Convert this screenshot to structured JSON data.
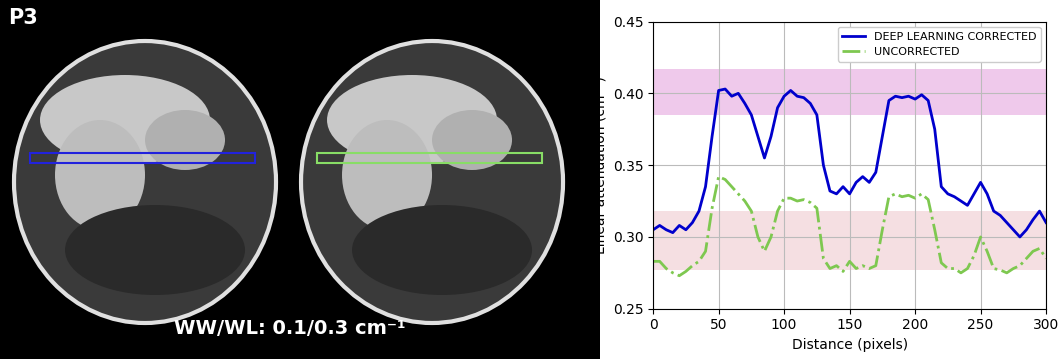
{
  "chart_data": {
    "type": "line",
    "xlabel": "Distance (pixels)",
    "ylabel": "Linear attenuation (cm⁻¹)",
    "xlim": [
      0,
      300
    ],
    "xticks": [
      0,
      50,
      100,
      150,
      200,
      250,
      300
    ],
    "ylim": [
      0.25,
      0.45
    ],
    "yticks": [
      {
        "value": 0.25,
        "label": "0.25"
      },
      {
        "value": 0.3,
        "label": "0.30"
      },
      {
        "value": 0.35,
        "label": "0.35"
      },
      {
        "value": 0.4,
        "label": "0.40"
      },
      {
        "value": 0.45,
        "label": "0.45"
      }
    ],
    "grid": true,
    "legend": "upper right",
    "bands": [
      {
        "range": [
          0.385,
          0.417
        ],
        "color": "#e9b3e3"
      },
      {
        "range": [
          0.277,
          0.318
        ],
        "color": "#f2d2d6"
      }
    ],
    "x": [
      0,
      5,
      10,
      15,
      20,
      25,
      30,
      35,
      40,
      45,
      50,
      55,
      60,
      65,
      70,
      75,
      80,
      85,
      90,
      95,
      100,
      105,
      110,
      115,
      120,
      125,
      130,
      135,
      140,
      145,
      150,
      155,
      160,
      165,
      170,
      175,
      180,
      185,
      190,
      195,
      200,
      205,
      210,
      215,
      220,
      225,
      230,
      235,
      240,
      245,
      250,
      255,
      260,
      265,
      270,
      275,
      280,
      285,
      290,
      295,
      300
    ],
    "series": [
      {
        "name": "DEEP LEARNING CORRECTED",
        "color": "#0000cc",
        "line_style": "solid",
        "values": [
          0.305,
          0.308,
          0.305,
          0.303,
          0.308,
          0.305,
          0.31,
          0.318,
          0.335,
          0.37,
          0.402,
          0.403,
          0.398,
          0.4,
          0.393,
          0.385,
          0.37,
          0.355,
          0.37,
          0.39,
          0.398,
          0.402,
          0.398,
          0.397,
          0.393,
          0.385,
          0.35,
          0.332,
          0.33,
          0.335,
          0.33,
          0.338,
          0.342,
          0.338,
          0.345,
          0.37,
          0.395,
          0.398,
          0.397,
          0.398,
          0.396,
          0.399,
          0.395,
          0.375,
          0.335,
          0.33,
          0.328,
          0.325,
          0.322,
          0.33,
          0.338,
          0.33,
          0.318,
          0.315,
          0.31,
          0.305,
          0.3,
          0.305,
          0.312,
          0.318,
          0.31
        ]
      },
      {
        "name": "UNCORRECTED",
        "color": "#7ec850",
        "line_style": "dashdot",
        "values": [
          0.283,
          0.283,
          0.278,
          0.275,
          0.273,
          0.276,
          0.28,
          0.283,
          0.29,
          0.32,
          0.342,
          0.34,
          0.335,
          0.33,
          0.325,
          0.318,
          0.3,
          0.29,
          0.3,
          0.318,
          0.327,
          0.327,
          0.325,
          0.326,
          0.324,
          0.32,
          0.285,
          0.278,
          0.28,
          0.276,
          0.283,
          0.278,
          0.28,
          0.278,
          0.28,
          0.305,
          0.328,
          0.33,
          0.328,
          0.329,
          0.327,
          0.33,
          0.326,
          0.305,
          0.282,
          0.278,
          0.278,
          0.275,
          0.278,
          0.287,
          0.3,
          0.29,
          0.278,
          0.277,
          0.275,
          0.278,
          0.28,
          0.285,
          0.29,
          0.292,
          0.285
        ]
      }
    ]
  },
  "image_panel": {
    "label": "P3",
    "window_text": "WW/WL: 0.1/0.3 cm⁻¹"
  }
}
